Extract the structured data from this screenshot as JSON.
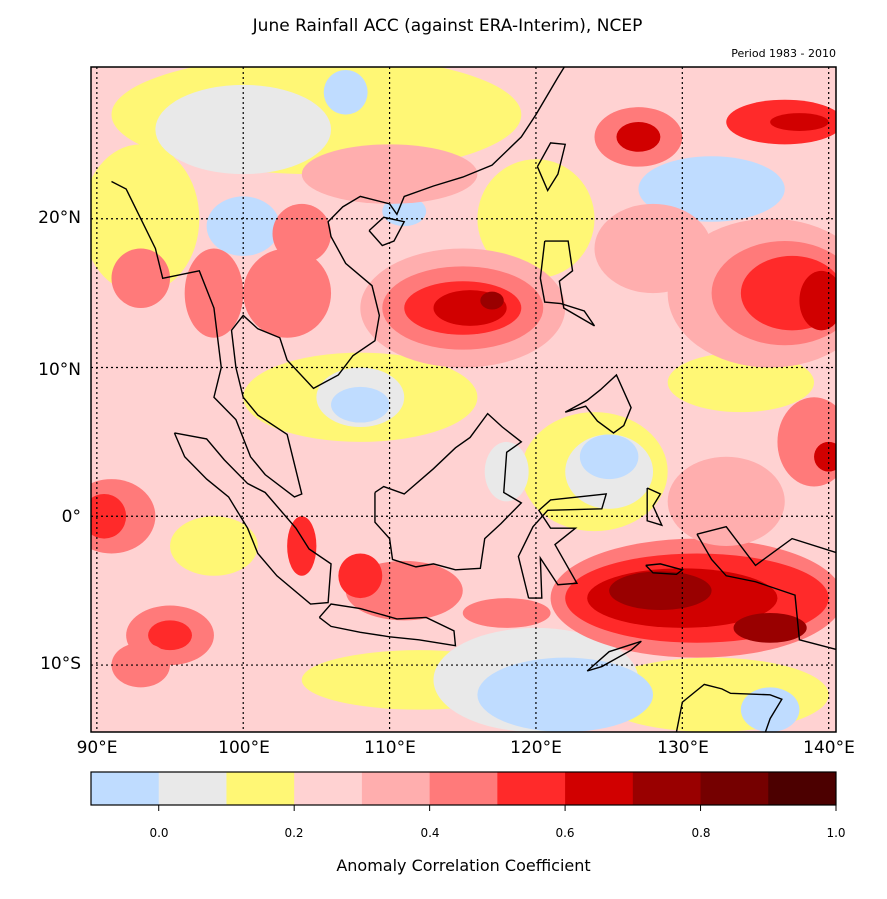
{
  "title": "June Rainfall ACC (against ERA-Interim), NCEP",
  "subtitle": "Period 1983 - 2010",
  "chart_data": {
    "type": "heatmap",
    "title": "June Rainfall ACC (against ERA-Interim), NCEP",
    "subtitle": "Period 1983 - 2010",
    "lon_range": [
      89.6,
      140.5
    ],
    "lat_range": [
      -14.5,
      30.2
    ],
    "lon_ticks": [
      "90°E",
      "100°E",
      "110°E",
      "120°E",
      "130°E",
      "140°E"
    ],
    "lon_tick_values": [
      90,
      100,
      110,
      120,
      130,
      140
    ],
    "lat_ticks": [
      "20°N",
      "10°N",
      "0°",
      "10°S"
    ],
    "lat_tick_values": [
      20,
      10,
      0,
      -10
    ],
    "grid": "dotted",
    "colorbar": {
      "label": "Anomaly Correlation Coefficient",
      "levels": [
        -0.1,
        0.0,
        0.1,
        0.2,
        0.3,
        0.4,
        0.5,
        0.6,
        0.7,
        0.8,
        0.9,
        1.0
      ],
      "tick_labels": [
        "0.0",
        "0.2",
        "0.4",
        "0.6",
        "0.8",
        "1.0"
      ],
      "tick_values": [
        0.0,
        0.2,
        0.4,
        0.6,
        0.8,
        1.0
      ],
      "colors": [
        "#bfdcff",
        "#e9e9e9",
        "#fff775",
        "#ffd2d2",
        "#ffaeae",
        "#ff7a7a",
        "#ff2a2a",
        "#d10000",
        "#990000",
        "#750000",
        "#4c0000"
      ]
    },
    "background_level": 3,
    "regions": [
      {
        "lon": 105,
        "lat": 27,
        "rlon": 14,
        "rlat": 4,
        "level": 2
      },
      {
        "lon": 93,
        "lat": 20,
        "rlon": 4,
        "rlat": 5,
        "level": 2
      },
      {
        "lon": 108,
        "lat": 8,
        "rlon": 8,
        "rlat": 3,
        "level": 2
      },
      {
        "lon": 120,
        "lat": 20,
        "rlon": 4,
        "rlat": 4,
        "level": 2
      },
      {
        "lon": 124,
        "lat": 3,
        "rlon": 5,
        "rlat": 4,
        "level": 2
      },
      {
        "lon": 134,
        "lat": 9,
        "rlon": 5,
        "rlat": 2,
        "level": 2
      },
      {
        "lon": 112,
        "lat": -11,
        "rlon": 8,
        "rlat": 2,
        "level": 2
      },
      {
        "lon": 132,
        "lat": -12,
        "rlon": 8,
        "rlat": 2.5,
        "level": 2
      },
      {
        "lon": 98,
        "lat": -2,
        "rlon": 3,
        "rlat": 2,
        "level": 2
      },
      {
        "lon": 100,
        "lat": 26,
        "rlon": 6,
        "rlat": 3,
        "level": 1
      },
      {
        "lon": 120,
        "lat": -11,
        "rlon": 7,
        "rlat": 3.5,
        "level": 1
      },
      {
        "lon": 108,
        "lat": 8,
        "rlon": 3,
        "rlat": 2,
        "level": 1
      },
      {
        "lon": 125,
        "lat": 3,
        "rlon": 3,
        "rlat": 2.5,
        "level": 1
      },
      {
        "lon": 118,
        "lat": 3,
        "rlon": 1.5,
        "rlat": 2,
        "level": 1
      },
      {
        "lon": 132,
        "lat": 22,
        "rlon": 5,
        "rlat": 2.2,
        "level": 0
      },
      {
        "lon": 100,
        "lat": 19.5,
        "rlon": 2.5,
        "rlat": 2,
        "level": 0
      },
      {
        "lon": 108,
        "lat": 7.5,
        "rlon": 2,
        "rlat": 1.2,
        "level": 0
      },
      {
        "lon": 122,
        "lat": -12,
        "rlon": 6,
        "rlat": 2.5,
        "level": 0
      },
      {
        "lon": 125,
        "lat": 4,
        "rlon": 2,
        "rlat": 1.5,
        "level": 0
      },
      {
        "lon": 107,
        "lat": 28.5,
        "rlon": 1.5,
        "rlat": 1.5,
        "level": 0
      },
      {
        "lon": 111,
        "lat": 20.5,
        "rlon": 1.5,
        "rlat": 1,
        "level": 0
      },
      {
        "lon": 136,
        "lat": -13,
        "rlon": 2,
        "rlat": 1.5,
        "level": 0
      },
      {
        "lon": 115,
        "lat": 14,
        "rlon": 7,
        "rlat": 4,
        "level": 4
      },
      {
        "lon": 115,
        "lat": 14,
        "rlon": 5.5,
        "rlat": 2.8,
        "level": 5
      },
      {
        "lon": 115,
        "lat": 14,
        "rlon": 4,
        "rlat": 1.8,
        "level": 6
      },
      {
        "lon": 115.5,
        "lat": 14,
        "rlon": 2.5,
        "rlat": 1.2,
        "level": 7
      },
      {
        "lon": 117,
        "lat": 14.5,
        "rlon": 0.8,
        "rlat": 0.6,
        "level": 8
      },
      {
        "lon": 136,
        "lat": 15,
        "rlon": 7,
        "rlat": 5,
        "level": 4
      },
      {
        "lon": 137,
        "lat": 15,
        "rlon": 5,
        "rlat": 3.5,
        "level": 5
      },
      {
        "lon": 137.5,
        "lat": 15,
        "rlon": 3.5,
        "rlat": 2.5,
        "level": 6
      },
      {
        "lon": 139.5,
        "lat": 14.5,
        "rlon": 1.5,
        "rlat": 2,
        "level": 7
      },
      {
        "lon": 127,
        "lat": 25.5,
        "rlon": 3,
        "rlat": 2,
        "level": 5
      },
      {
        "lon": 127,
        "lat": 25.5,
        "rlon": 1.5,
        "rlat": 1,
        "level": 7
      },
      {
        "lon": 137,
        "lat": 26.5,
        "rlon": 4,
        "rlat": 1.5,
        "level": 6
      },
      {
        "lon": 138,
        "lat": 26.5,
        "rlon": 2,
        "rlat": 0.6,
        "level": 7
      },
      {
        "lon": 131,
        "lat": -5.5,
        "rlon": 10,
        "rlat": 4,
        "level": 5
      },
      {
        "lon": 131,
        "lat": -5.5,
        "rlon": 9,
        "rlat": 3,
        "level": 6
      },
      {
        "lon": 130,
        "lat": -5.5,
        "rlon": 6.5,
        "rlat": 2,
        "level": 7
      },
      {
        "lon": 128.5,
        "lat": -5,
        "rlon": 3.5,
        "rlat": 1.3,
        "level": 8
      },
      {
        "lon": 136,
        "lat": -7.5,
        "rlon": 2.5,
        "rlat": 1,
        "level": 8
      },
      {
        "lon": 91,
        "lat": 0,
        "rlon": 3,
        "rlat": 2.5,
        "level": 5
      },
      {
        "lon": 90.5,
        "lat": 0,
        "rlon": 1.5,
        "rlat": 1.5,
        "level": 6
      },
      {
        "lon": 139,
        "lat": 5,
        "rlon": 2.5,
        "rlat": 3,
        "level": 5
      },
      {
        "lon": 140,
        "lat": 4,
        "rlon": 1,
        "rlat": 1,
        "level": 7
      },
      {
        "lon": 95,
        "lat": -8,
        "rlon": 3,
        "rlat": 2,
        "level": 5
      },
      {
        "lon": 95,
        "lat": -8,
        "rlon": 1.5,
        "rlat": 1,
        "level": 6
      },
      {
        "lon": 111,
        "lat": -5,
        "rlon": 4,
        "rlat": 2,
        "level": 5
      },
      {
        "lon": 108,
        "lat": -4,
        "rlon": 1.5,
        "rlat": 1.5,
        "level": 6
      },
      {
        "lon": 118,
        "lat": -6.5,
        "rlon": 3,
        "rlat": 1,
        "level": 5
      },
      {
        "lon": 104,
        "lat": -2,
        "rlon": 1,
        "rlat": 2,
        "level": 6
      },
      {
        "lon": 103,
        "lat": 15,
        "rlon": 3,
        "rlat": 3,
        "level": 5
      },
      {
        "lon": 104,
        "lat": 19,
        "rlon": 2,
        "rlat": 2,
        "level": 5
      },
      {
        "lon": 98,
        "lat": 15,
        "rlon": 2,
        "rlat": 3,
        "level": 5
      },
      {
        "lon": 93,
        "lat": 16,
        "rlon": 2,
        "rlat": 2,
        "level": 5
      },
      {
        "lon": 93,
        "lat": -10,
        "rlon": 2,
        "rlat": 1.5,
        "level": 5
      },
      {
        "lon": 133,
        "lat": 1,
        "rlon": 4,
        "rlat": 3,
        "level": 4
      },
      {
        "lon": 110,
        "lat": 23,
        "rlon": 6,
        "rlat": 2,
        "level": 4
      },
      {
        "lon": 128,
        "lat": 18,
        "rlon": 4,
        "rlat": 3,
        "level": 4
      }
    ]
  }
}
